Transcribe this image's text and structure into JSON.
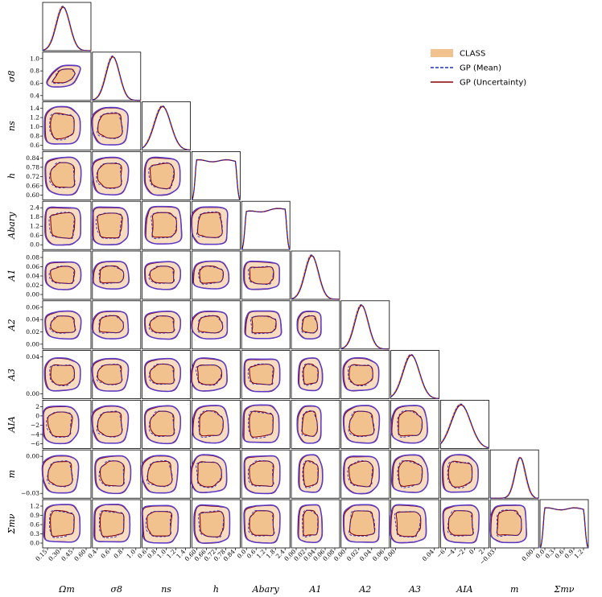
{
  "chart_data": {
    "type": "corner",
    "parameters": [
      "Ωm",
      "σ8",
      "ns",
      "h",
      "Abary",
      "A1",
      "A2",
      "A3",
      "AIA",
      "m",
      "Σmν"
    ],
    "axis_labels": [
      "Ωm",
      "σ8",
      "ns",
      "h",
      "Abary",
      "A1",
      "A2",
      "A3",
      "AIA",
      "m",
      "Σmν"
    ],
    "ticks": [
      [
        "0.15",
        "0.30",
        "0.45",
        "0.60"
      ],
      [
        "0.4",
        "0.6",
        "0.8",
        "1.0"
      ],
      [
        "0.6",
        "0.8",
        "1.0",
        "1.2",
        "1.4"
      ],
      [
        "0.60",
        "0.66",
        "0.72",
        "0.78",
        "0.84"
      ],
      [
        "0.0",
        "0.6",
        "1.2",
        "1.8",
        "2.4"
      ],
      [
        "0.00",
        "0.02",
        "0.04",
        "0.06",
        "0.08"
      ],
      [
        "0.00",
        "0.02",
        "0.04",
        "0.06"
      ],
      [
        "0.00",
        "0.04"
      ],
      [
        "−6",
        "−4",
        "−2",
        "0",
        "2"
      ],
      [
        "−0.03",
        "0.00"
      ],
      [
        "0.0",
        "0.3",
        "0.6",
        "0.9",
        "1.2"
      ]
    ],
    "y_ticks": [
      [],
      [
        "0.4",
        "0.6",
        "0.8",
        "1.0"
      ],
      [
        "0.6",
        "0.8",
        "1.0",
        "1.2",
        "1.4"
      ],
      [
        "0.60",
        "0.66",
        "0.72",
        "0.78",
        "0.84"
      ],
      [
        "0.0",
        "0.6",
        "1.2",
        "1.8",
        "2.4"
      ],
      [
        "0.00",
        "0.02",
        "0.04",
        "0.06",
        "0.08"
      ],
      [
        "0.00",
        "0.02",
        "0.04",
        "0.06"
      ],
      [
        "0.00",
        "0.04"
      ],
      [
        "−6",
        "−4",
        "−2",
        "0",
        "2"
      ],
      [
        "−0.03",
        "0.00"
      ],
      [
        "0.0",
        "0.3",
        "0.6",
        "0.9",
        "1.2"
      ]
    ],
    "series": [
      {
        "name": "CLASS",
        "style": "filled",
        "color": "#f2c28e"
      },
      {
        "name": "GP (Mean)",
        "style": "dashed",
        "color": "#1f2fd6"
      },
      {
        "name": "GP (Uncertainty)",
        "style": "solid",
        "color": "#8b0000"
      }
    ],
    "legend_position": "top-right",
    "colors": {
      "class_fill": "#f2c28e",
      "class_outer": "#f7dcc0",
      "mean": "#1f2fd6",
      "uncertainty": "#8b0000",
      "outer_contour": "#5a3bc9"
    }
  }
}
